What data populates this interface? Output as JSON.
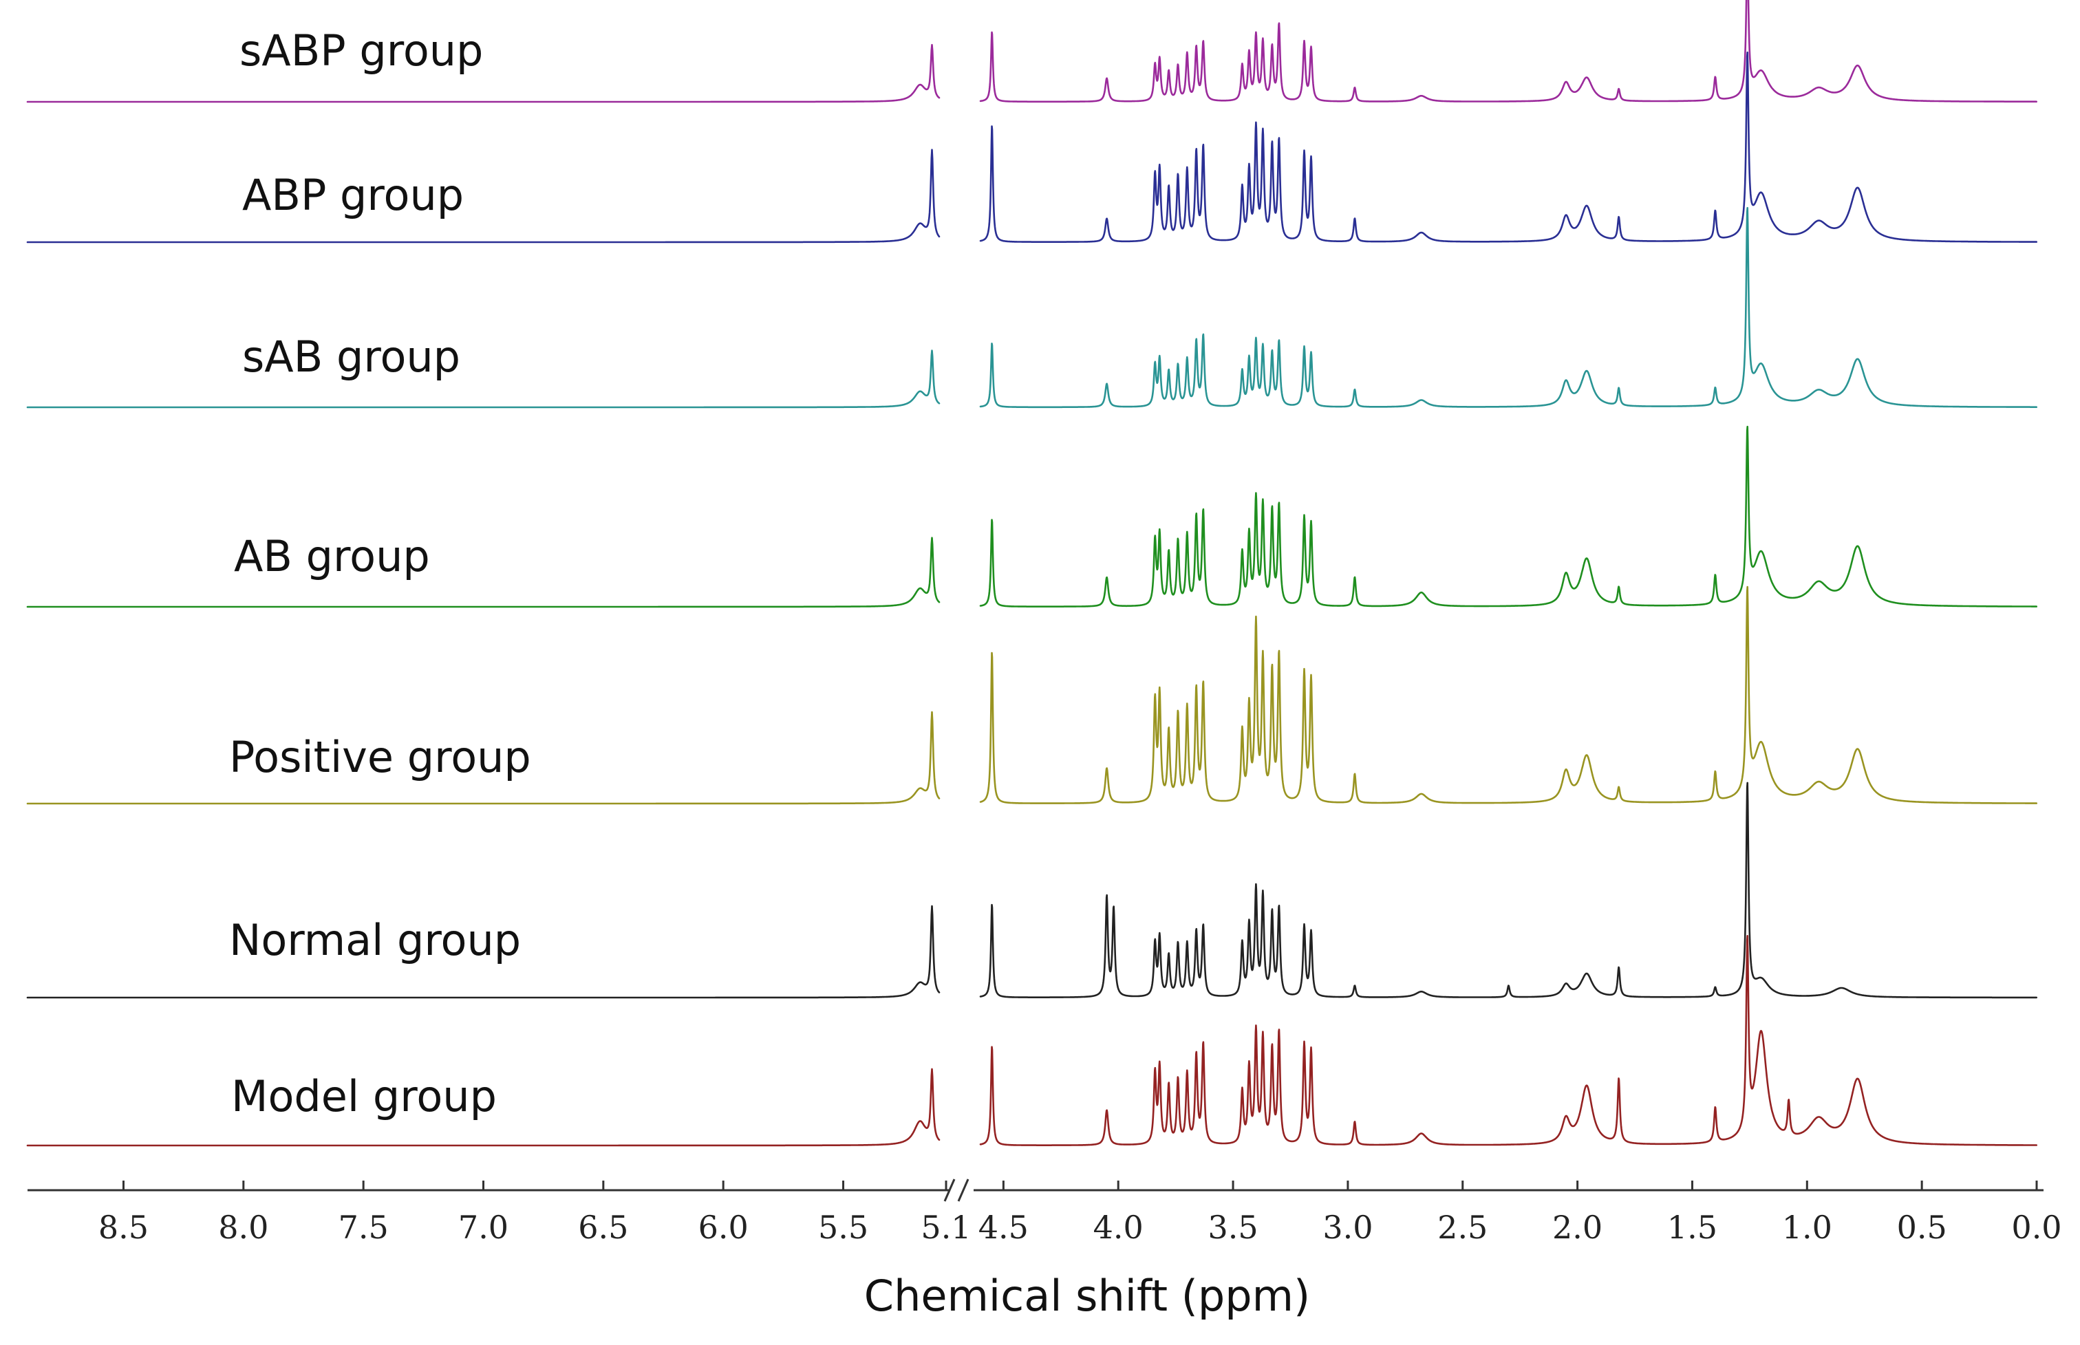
{
  "chart_data": {
    "type": "line",
    "title": "",
    "xlabel": "Chemical shift (ppm)",
    "ylabel": "",
    "x_direction": "descending",
    "axis_break": [
      5.1,
      4.5
    ],
    "segments": [
      {
        "xlim": [
          8.9,
          5.1
        ],
        "ticks": [
          8.5,
          8.0,
          7.5,
          7.0,
          6.5,
          6.0,
          5.5,
          5.1
        ]
      },
      {
        "xlim": [
          4.6,
          0.0
        ],
        "ticks": [
          4.5,
          4.0,
          3.5,
          3.0,
          2.5,
          2.0,
          1.5,
          1.0,
          0.5,
          0.0
        ]
      }
    ],
    "tick_labels": [
      "8.5",
      "8.0",
      "7.5",
      "7.0",
      "6.5",
      "6.0",
      "5.5",
      "5.1",
      "4.5",
      "4.0",
      "3.5",
      "3.0",
      "2.5",
      "2.0",
      "1.5",
      "1.0",
      "0.5",
      "0.0"
    ],
    "break_symbol": "//",
    "series": [
      {
        "name": "sABP group",
        "color": "#9b2a9b",
        "peaks": [
          [
            5.18,
            0.14,
            0.03
          ],
          [
            5.13,
            0.45,
            0.006
          ],
          [
            4.55,
            0.6,
            0.005
          ],
          [
            4.05,
            0.2,
            0.008
          ],
          [
            3.84,
            0.3,
            0.006
          ],
          [
            3.82,
            0.35,
            0.006
          ],
          [
            3.78,
            0.25,
            0.006
          ],
          [
            3.74,
            0.3,
            0.006
          ],
          [
            3.7,
            0.4,
            0.006
          ],
          [
            3.66,
            0.45,
            0.006
          ],
          [
            3.63,
            0.5,
            0.006
          ],
          [
            3.46,
            0.3,
            0.006
          ],
          [
            3.43,
            0.4,
            0.006
          ],
          [
            3.4,
            0.55,
            0.006
          ],
          [
            3.37,
            0.5,
            0.006
          ],
          [
            3.33,
            0.45,
            0.006
          ],
          [
            3.3,
            0.65,
            0.006
          ],
          [
            3.19,
            0.5,
            0.006
          ],
          [
            3.16,
            0.45,
            0.006
          ],
          [
            2.97,
            0.12,
            0.006
          ],
          [
            2.68,
            0.05,
            0.03
          ],
          [
            2.05,
            0.15,
            0.02
          ],
          [
            1.96,
            0.2,
            0.03
          ],
          [
            1.82,
            0.1,
            0.006
          ],
          [
            1.4,
            0.2,
            0.006
          ],
          [
            1.26,
            1.2,
            0.006
          ],
          [
            1.2,
            0.25,
            0.04
          ],
          [
            0.95,
            0.1,
            0.05
          ],
          [
            0.78,
            0.3,
            0.04
          ]
        ]
      },
      {
        "name": "ABP group",
        "color": "#2a2f94",
        "peaks": [
          [
            5.18,
            0.15,
            0.03
          ],
          [
            5.13,
            0.75,
            0.006
          ],
          [
            4.55,
            1.0,
            0.005
          ],
          [
            4.05,
            0.2,
            0.008
          ],
          [
            3.84,
            0.55,
            0.006
          ],
          [
            3.82,
            0.6,
            0.006
          ],
          [
            3.78,
            0.45,
            0.006
          ],
          [
            3.74,
            0.55,
            0.006
          ],
          [
            3.7,
            0.6,
            0.006
          ],
          [
            3.66,
            0.75,
            0.006
          ],
          [
            3.63,
            0.8,
            0.006
          ],
          [
            3.46,
            0.45,
            0.006
          ],
          [
            3.43,
            0.6,
            0.006
          ],
          [
            3.4,
            0.95,
            0.006
          ],
          [
            3.37,
            0.9,
            0.006
          ],
          [
            3.33,
            0.8,
            0.006
          ],
          [
            3.3,
            0.85,
            0.006
          ],
          [
            3.19,
            0.75,
            0.006
          ],
          [
            3.16,
            0.7,
            0.006
          ],
          [
            2.97,
            0.2,
            0.006
          ],
          [
            2.68,
            0.08,
            0.03
          ],
          [
            2.05,
            0.2,
            0.02
          ],
          [
            1.96,
            0.3,
            0.03
          ],
          [
            1.82,
            0.2,
            0.006
          ],
          [
            1.4,
            0.25,
            0.006
          ],
          [
            1.26,
            1.5,
            0.006
          ],
          [
            1.2,
            0.4,
            0.04
          ],
          [
            0.95,
            0.15,
            0.05
          ],
          [
            0.78,
            0.45,
            0.04
          ]
        ]
      },
      {
        "name": "sAB group",
        "color": "#2a9494",
        "peaks": [
          [
            5.18,
            0.13,
            0.03
          ],
          [
            5.13,
            0.45,
            0.006
          ],
          [
            4.55,
            0.55,
            0.005
          ],
          [
            4.05,
            0.2,
            0.008
          ],
          [
            3.84,
            0.35,
            0.006
          ],
          [
            3.82,
            0.4,
            0.006
          ],
          [
            3.78,
            0.3,
            0.006
          ],
          [
            3.74,
            0.35,
            0.006
          ],
          [
            3.7,
            0.4,
            0.006
          ],
          [
            3.66,
            0.55,
            0.006
          ],
          [
            3.63,
            0.6,
            0.006
          ],
          [
            3.46,
            0.3,
            0.006
          ],
          [
            3.43,
            0.4,
            0.006
          ],
          [
            3.4,
            0.55,
            0.006
          ],
          [
            3.37,
            0.5,
            0.006
          ],
          [
            3.33,
            0.45,
            0.006
          ],
          [
            3.3,
            0.55,
            0.006
          ],
          [
            3.19,
            0.5,
            0.006
          ],
          [
            3.16,
            0.45,
            0.006
          ],
          [
            2.97,
            0.15,
            0.006
          ],
          [
            2.68,
            0.06,
            0.03
          ],
          [
            2.05,
            0.2,
            0.02
          ],
          [
            1.96,
            0.3,
            0.03
          ],
          [
            1.82,
            0.15,
            0.006
          ],
          [
            1.4,
            0.15,
            0.006
          ],
          [
            1.26,
            1.6,
            0.006
          ],
          [
            1.2,
            0.35,
            0.04
          ],
          [
            0.95,
            0.12,
            0.05
          ],
          [
            0.78,
            0.4,
            0.04
          ]
        ]
      },
      {
        "name": "AB group",
        "color": "#1f8f1f",
        "peaks": [
          [
            5.18,
            0.15,
            0.03
          ],
          [
            5.13,
            0.55,
            0.006
          ],
          [
            4.55,
            0.75,
            0.005
          ],
          [
            4.05,
            0.25,
            0.008
          ],
          [
            3.84,
            0.55,
            0.006
          ],
          [
            3.82,
            0.6,
            0.006
          ],
          [
            3.78,
            0.45,
            0.006
          ],
          [
            3.74,
            0.55,
            0.006
          ],
          [
            3.7,
            0.6,
            0.006
          ],
          [
            3.66,
            0.75,
            0.006
          ],
          [
            3.63,
            0.8,
            0.006
          ],
          [
            3.46,
            0.45,
            0.006
          ],
          [
            3.43,
            0.6,
            0.006
          ],
          [
            3.4,
            0.9,
            0.006
          ],
          [
            3.37,
            0.85,
            0.006
          ],
          [
            3.33,
            0.8,
            0.006
          ],
          [
            3.3,
            0.85,
            0.006
          ],
          [
            3.19,
            0.75,
            0.006
          ],
          [
            3.16,
            0.7,
            0.006
          ],
          [
            2.97,
            0.25,
            0.006
          ],
          [
            2.68,
            0.12,
            0.03
          ],
          [
            2.05,
            0.25,
            0.02
          ],
          [
            1.96,
            0.4,
            0.03
          ],
          [
            1.82,
            0.15,
            0.006
          ],
          [
            1.4,
            0.25,
            0.006
          ],
          [
            1.26,
            1.4,
            0.006
          ],
          [
            1.2,
            0.45,
            0.04
          ],
          [
            0.95,
            0.18,
            0.05
          ],
          [
            0.78,
            0.5,
            0.04
          ]
        ]
      },
      {
        "name": "Positive group",
        "color": "#999421",
        "peaks": [
          [
            5.18,
            0.12,
            0.03
          ],
          [
            5.13,
            0.75,
            0.006
          ],
          [
            4.55,
            1.3,
            0.005
          ],
          [
            4.05,
            0.3,
            0.008
          ],
          [
            3.84,
            0.85,
            0.006
          ],
          [
            3.82,
            0.9,
            0.006
          ],
          [
            3.78,
            0.6,
            0.006
          ],
          [
            3.74,
            0.75,
            0.006
          ],
          [
            3.7,
            0.8,
            0.006
          ],
          [
            3.66,
            0.95,
            0.006
          ],
          [
            3.63,
            1.0,
            0.006
          ],
          [
            3.46,
            0.6,
            0.006
          ],
          [
            3.43,
            0.8,
            0.006
          ],
          [
            3.4,
            1.5,
            0.006
          ],
          [
            3.37,
            1.2,
            0.006
          ],
          [
            3.33,
            1.1,
            0.006
          ],
          [
            3.3,
            1.25,
            0.006
          ],
          [
            3.19,
            1.1,
            0.006
          ],
          [
            3.16,
            1.05,
            0.006
          ],
          [
            2.97,
            0.25,
            0.006
          ],
          [
            2.68,
            0.08,
            0.03
          ],
          [
            2.05,
            0.25,
            0.02
          ],
          [
            1.96,
            0.4,
            0.03
          ],
          [
            1.82,
            0.12,
            0.006
          ],
          [
            1.4,
            0.25,
            0.006
          ],
          [
            1.26,
            1.7,
            0.006
          ],
          [
            1.2,
            0.5,
            0.04
          ],
          [
            0.95,
            0.15,
            0.05
          ],
          [
            0.78,
            0.45,
            0.04
          ]
        ]
      },
      {
        "name": "Normal group",
        "color": "#222222",
        "peaks": [
          [
            5.18,
            0.12,
            0.03
          ],
          [
            5.13,
            0.75,
            0.006
          ],
          [
            4.55,
            0.8,
            0.005
          ],
          [
            4.05,
            0.85,
            0.006
          ],
          [
            4.02,
            0.75,
            0.006
          ],
          [
            3.84,
            0.45,
            0.006
          ],
          [
            3.82,
            0.5,
            0.006
          ],
          [
            3.78,
            0.35,
            0.006
          ],
          [
            3.74,
            0.45,
            0.006
          ],
          [
            3.7,
            0.45,
            0.006
          ],
          [
            3.66,
            0.55,
            0.006
          ],
          [
            3.63,
            0.6,
            0.006
          ],
          [
            3.46,
            0.45,
            0.006
          ],
          [
            3.43,
            0.6,
            0.006
          ],
          [
            3.4,
            0.9,
            0.006
          ],
          [
            3.37,
            0.85,
            0.006
          ],
          [
            3.33,
            0.7,
            0.006
          ],
          [
            3.3,
            0.75,
            0.006
          ],
          [
            3.19,
            0.6,
            0.006
          ],
          [
            3.16,
            0.55,
            0.006
          ],
          [
            2.97,
            0.1,
            0.006
          ],
          [
            2.68,
            0.05,
            0.03
          ],
          [
            2.3,
            0.1,
            0.006
          ],
          [
            2.05,
            0.1,
            0.02
          ],
          [
            1.96,
            0.2,
            0.03
          ],
          [
            1.82,
            0.25,
            0.006
          ],
          [
            1.4,
            0.08,
            0.006
          ],
          [
            1.26,
            1.8,
            0.006
          ],
          [
            1.2,
            0.15,
            0.04
          ],
          [
            0.85,
            0.08,
            0.05
          ]
        ]
      },
      {
        "name": "Model group",
        "color": "#942222",
        "peaks": [
          [
            5.18,
            0.2,
            0.03
          ],
          [
            5.13,
            0.6,
            0.006
          ],
          [
            4.55,
            0.85,
            0.005
          ],
          [
            4.05,
            0.3,
            0.008
          ],
          [
            3.84,
            0.6,
            0.006
          ],
          [
            3.82,
            0.65,
            0.006
          ],
          [
            3.78,
            0.5,
            0.006
          ],
          [
            3.74,
            0.55,
            0.006
          ],
          [
            3.7,
            0.6,
            0.006
          ],
          [
            3.66,
            0.75,
            0.006
          ],
          [
            3.63,
            0.85,
            0.006
          ],
          [
            3.46,
            0.45,
            0.006
          ],
          [
            3.43,
            0.65,
            0.006
          ],
          [
            3.4,
            0.95,
            0.006
          ],
          [
            3.37,
            0.9,
            0.006
          ],
          [
            3.33,
            0.8,
            0.006
          ],
          [
            3.3,
            0.95,
            0.006
          ],
          [
            3.19,
            0.85,
            0.006
          ],
          [
            3.16,
            0.8,
            0.006
          ],
          [
            2.97,
            0.2,
            0.006
          ],
          [
            2.68,
            0.1,
            0.03
          ],
          [
            2.05,
            0.2,
            0.02
          ],
          [
            1.96,
            0.5,
            0.03
          ],
          [
            1.82,
            0.55,
            0.006
          ],
          [
            1.4,
            0.3,
            0.006
          ],
          [
            1.26,
            1.6,
            0.006
          ],
          [
            1.2,
            0.95,
            0.03
          ],
          [
            1.08,
            0.3,
            0.006
          ],
          [
            0.95,
            0.2,
            0.05
          ],
          [
            0.78,
            0.55,
            0.04
          ]
        ]
      }
    ]
  }
}
